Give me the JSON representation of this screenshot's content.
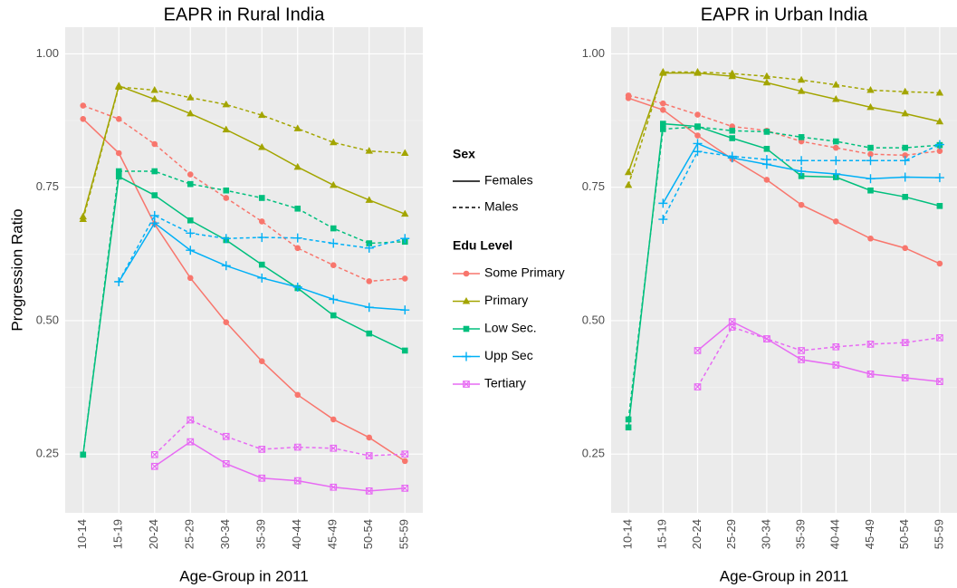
{
  "chart_data": [
    {
      "type": "line",
      "title": "EAPR in Rural India",
      "x_label": "Age-Group in 2011",
      "y_label": "Progression Ratio",
      "categories": [
        "10-14",
        "15-19",
        "20-24",
        "25-29",
        "30-34",
        "35-39",
        "40-44",
        "45-49",
        "50-54",
        "55-59"
      ],
      "ylim": [
        0.14,
        1.05
      ],
      "yticks": [
        {
          "value": 0.25,
          "label": "0.25"
        },
        {
          "value": 0.5,
          "label": "0.50"
        },
        0.75,
        {
          "value": 1,
          "label": "1.00"
        }
      ],
      "grid": true,
      "series": [
        {
          "name": "Some Primary",
          "color": "#F8766D",
          "marker": "circle",
          "values": [
            [
              0.878,
              0.814,
              0.681,
              0.58,
              0.497,
              0.424,
              0.361,
              0.315,
              0.281,
              0.237
            ],
            [
              0.903,
              0.878,
              0.831,
              0.774,
              0.73,
              0.686,
              0.636,
              0.604,
              0.574,
              0.579
            ]
          ]
        },
        {
          "name": "Primary",
          "color": "#A3A500",
          "marker": "triangle",
          "values": [
            [
              0.695,
              0.94,
              0.915,
              0.888,
              0.858,
              0.825,
              0.788,
              0.754,
              0.726,
              0.7
            ],
            [
              0.69,
              0.938,
              0.932,
              0.918,
              0.905,
              0.885,
              0.86,
              0.834,
              0.818,
              0.814
            ]
          ]
        },
        {
          "name": "Low Sec.",
          "color": "#00BF7D",
          "marker": "square",
          "values": [
            [
              0.249,
              0.77,
              0.735,
              0.688,
              0.651,
              0.605,
              0.561,
              0.51,
              0.476,
              0.444
            ],
            [
              0.249,
              0.78,
              0.78,
              0.756,
              0.744,
              0.73,
              0.71,
              0.673,
              0.645,
              0.648
            ]
          ]
        },
        {
          "name": "Upp Sec",
          "color": "#00B0F6",
          "marker": "plus",
          "values": [
            [
              null,
              0.573,
              0.683,
              0.632,
              0.603,
              0.58,
              0.563,
              0.54,
              0.525,
              0.52
            ],
            [
              null,
              0.573,
              0.697,
              0.664,
              0.654,
              0.656,
              0.655,
              0.645,
              0.636,
              0.654
            ]
          ]
        },
        {
          "name": "Tertiary",
          "color": "#E76BF3",
          "marker": "boxcross",
          "values": [
            [
              null,
              null,
              0.227,
              0.273,
              0.232,
              0.205,
              0.2,
              0.188,
              0.181,
              0.186
            ],
            [
              null,
              null,
              0.249,
              0.314,
              0.283,
              0.259,
              0.263,
              0.261,
              0.247,
              0.25
            ]
          ]
        }
      ]
    },
    {
      "type": "line",
      "title": "EAPR in Urban India",
      "x_label": "Age-Group in 2011",
      "categories": [
        "10-14",
        "15-19",
        "20-24",
        "25-29",
        "30-34",
        "35-39",
        "40-44",
        "45-49",
        "50-54",
        "55-59"
      ],
      "ylim": [
        0.14,
        1.05
      ],
      "yticks": [
        {
          "value": 0.25,
          "label": "0.25"
        },
        {
          "value": 0.5,
          "label": "0.50"
        },
        0.75,
        {
          "value": 1,
          "label": "1.00"
        }
      ],
      "grid": true,
      "series": [
        {
          "name": "Some Primary",
          "color": "#F8766D",
          "marker": "circle",
          "values": [
            [
              0.917,
              0.895,
              0.847,
              0.803,
              0.764,
              0.717,
              0.686,
              0.654,
              0.636,
              0.607
            ],
            [
              0.922,
              0.907,
              0.886,
              0.864,
              0.856,
              0.836,
              0.824,
              0.812,
              0.81,
              0.818
            ]
          ]
        },
        {
          "name": "Primary",
          "color": "#A3A500",
          "marker": "triangle",
          "values": [
            [
              0.778,
              0.964,
              0.964,
              0.958,
              0.946,
              0.93,
              0.915,
              0.9,
              0.888,
              0.873
            ],
            [
              0.754,
              0.966,
              0.966,
              0.963,
              0.958,
              0.951,
              0.942,
              0.932,
              0.929,
              0.927
            ]
          ]
        },
        {
          "name": "Low Sec.",
          "color": "#00BF7D",
          "marker": "square",
          "values": [
            [
              0.3,
              0.869,
              0.864,
              0.842,
              0.822,
              0.771,
              0.769,
              0.744,
              0.732,
              0.715
            ],
            [
              0.315,
              0.859,
              0.863,
              0.856,
              0.854,
              0.844,
              0.836,
              0.824,
              0.824,
              0.829
            ]
          ]
        },
        {
          "name": "Upp Sec",
          "color": "#00B0F6",
          "marker": "plus",
          "values": [
            [
              null,
              0.72,
              0.832,
              0.805,
              0.793,
              0.78,
              0.775,
              0.766,
              0.769,
              0.768
            ],
            [
              null,
              0.69,
              0.817,
              0.808,
              0.802,
              0.8,
              0.8,
              0.8,
              0.8,
              0.83
            ]
          ]
        },
        {
          "name": "Tertiary",
          "color": "#E76BF3",
          "marker": "boxcross",
          "values": [
            [
              null,
              null,
              0.444,
              0.498,
              0.466,
              0.427,
              0.417,
              0.4,
              0.393,
              0.386
            ],
            [
              null,
              null,
              0.376,
              0.488,
              0.466,
              0.444,
              0.451,
              0.456,
              0.459,
              0.468
            ]
          ]
        }
      ]
    }
  ],
  "legend": {
    "sex_title": "Sex",
    "sex": [
      {
        "name": "Females",
        "dash": "solid"
      },
      {
        "name": "Males",
        "dash": "dashed"
      }
    ],
    "title": "Edu Level"
  }
}
